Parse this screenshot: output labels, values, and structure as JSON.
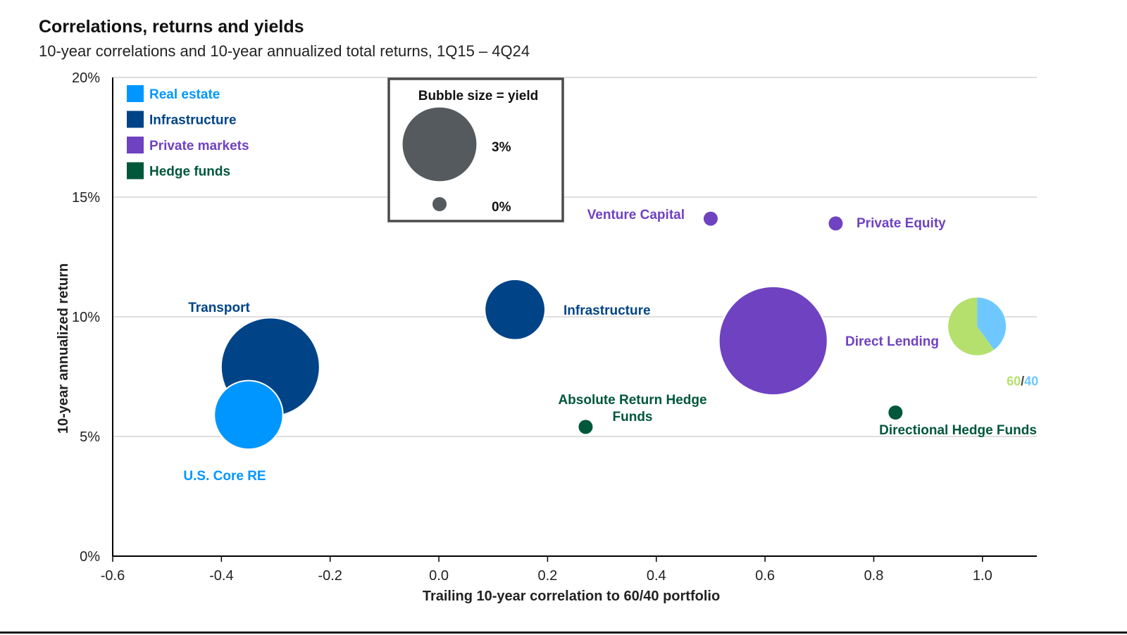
{
  "title": "Correlations, returns and yields",
  "subtitle": "10-year correlations and 10-year annualized total returns, 1Q15 – 4Q24",
  "colors": {
    "real_estate": "#0096ff",
    "infrastructure": "#004487",
    "private_markets": "#6f42c1",
    "hedge_funds": "#00573a",
    "mix_60": "#b5e06e",
    "mix_40": "#6ec8ff",
    "grid": "#d4d4d4",
    "axis": "#000000"
  },
  "legend": [
    {
      "label": "Real estate",
      "color_key": "real_estate"
    },
    {
      "label": "Infrastructure",
      "color_key": "infrastructure"
    },
    {
      "label": "Private markets",
      "color_key": "private_markets"
    },
    {
      "label": "Hedge funds",
      "color_key": "hedge_funds"
    }
  ],
  "size_key": {
    "title": "Bubble size = yield",
    "items": [
      {
        "label": "3%",
        "yield": 3
      },
      {
        "label": "0%",
        "yield": 0
      }
    ]
  },
  "chart_data": {
    "type": "scatter",
    "title": "Correlations, returns and yields",
    "subtitle": "10-year correlations and 10-year annualized total returns, 1Q15 – 4Q24",
    "xlabel": "Trailing 10-year correlation to 60/40 portfolio",
    "ylabel": "10-year annualized return",
    "xlim": [
      -0.6,
      1.1
    ],
    "ylim": [
      0,
      20
    ],
    "x_ticks": [
      -0.6,
      -0.4,
      -0.2,
      0.0,
      0.2,
      0.4,
      0.6,
      0.8,
      1.0
    ],
    "x_tick_labels": [
      "-0.6",
      "-0.4",
      "-0.2",
      "0.0",
      "0.2",
      "0.4",
      "0.6",
      "0.8",
      "1.0"
    ],
    "y_ticks": [
      0,
      5,
      10,
      15,
      20
    ],
    "y_tick_labels": [
      "0%",
      "5%",
      "10%",
      "15%",
      "20%"
    ],
    "grid": "horizontal",
    "size_encoding": "yield",
    "points": [
      {
        "name": "Transport",
        "group": "infrastructure",
        "x": -0.31,
        "y": 7.9,
        "yield": 6.0
      },
      {
        "name": "U.S. Core RE",
        "group": "real_estate",
        "x": -0.35,
        "y": 5.9,
        "yield": 2.5
      },
      {
        "name": "Infrastructure",
        "group": "infrastructure",
        "x": 0.14,
        "y": 10.3,
        "yield": 1.8
      },
      {
        "name": "Absolute Return Hedge Funds",
        "group": "hedge_funds",
        "x": 0.27,
        "y": 5.4,
        "yield": 0
      },
      {
        "name": "Venture Capital",
        "group": "private_markets",
        "x": 0.5,
        "y": 14.1,
        "yield": 0
      },
      {
        "name": "Private Equity",
        "group": "private_markets",
        "x": 0.73,
        "y": 13.9,
        "yield": 0
      },
      {
        "name": "Direct Lending",
        "group": "private_markets",
        "x": 0.615,
        "y": 9.0,
        "yield": 7.5
      },
      {
        "name": "Directional Hedge Funds",
        "group": "hedge_funds",
        "x": 0.84,
        "y": 6.0,
        "yield": 0
      },
      {
        "name": "60/40",
        "group": "mix",
        "x": 0.99,
        "y": 9.6,
        "yield": 1.6,
        "label_parts": [
          "60",
          "/",
          "40"
        ],
        "pie": [
          60,
          40
        ]
      }
    ]
  }
}
